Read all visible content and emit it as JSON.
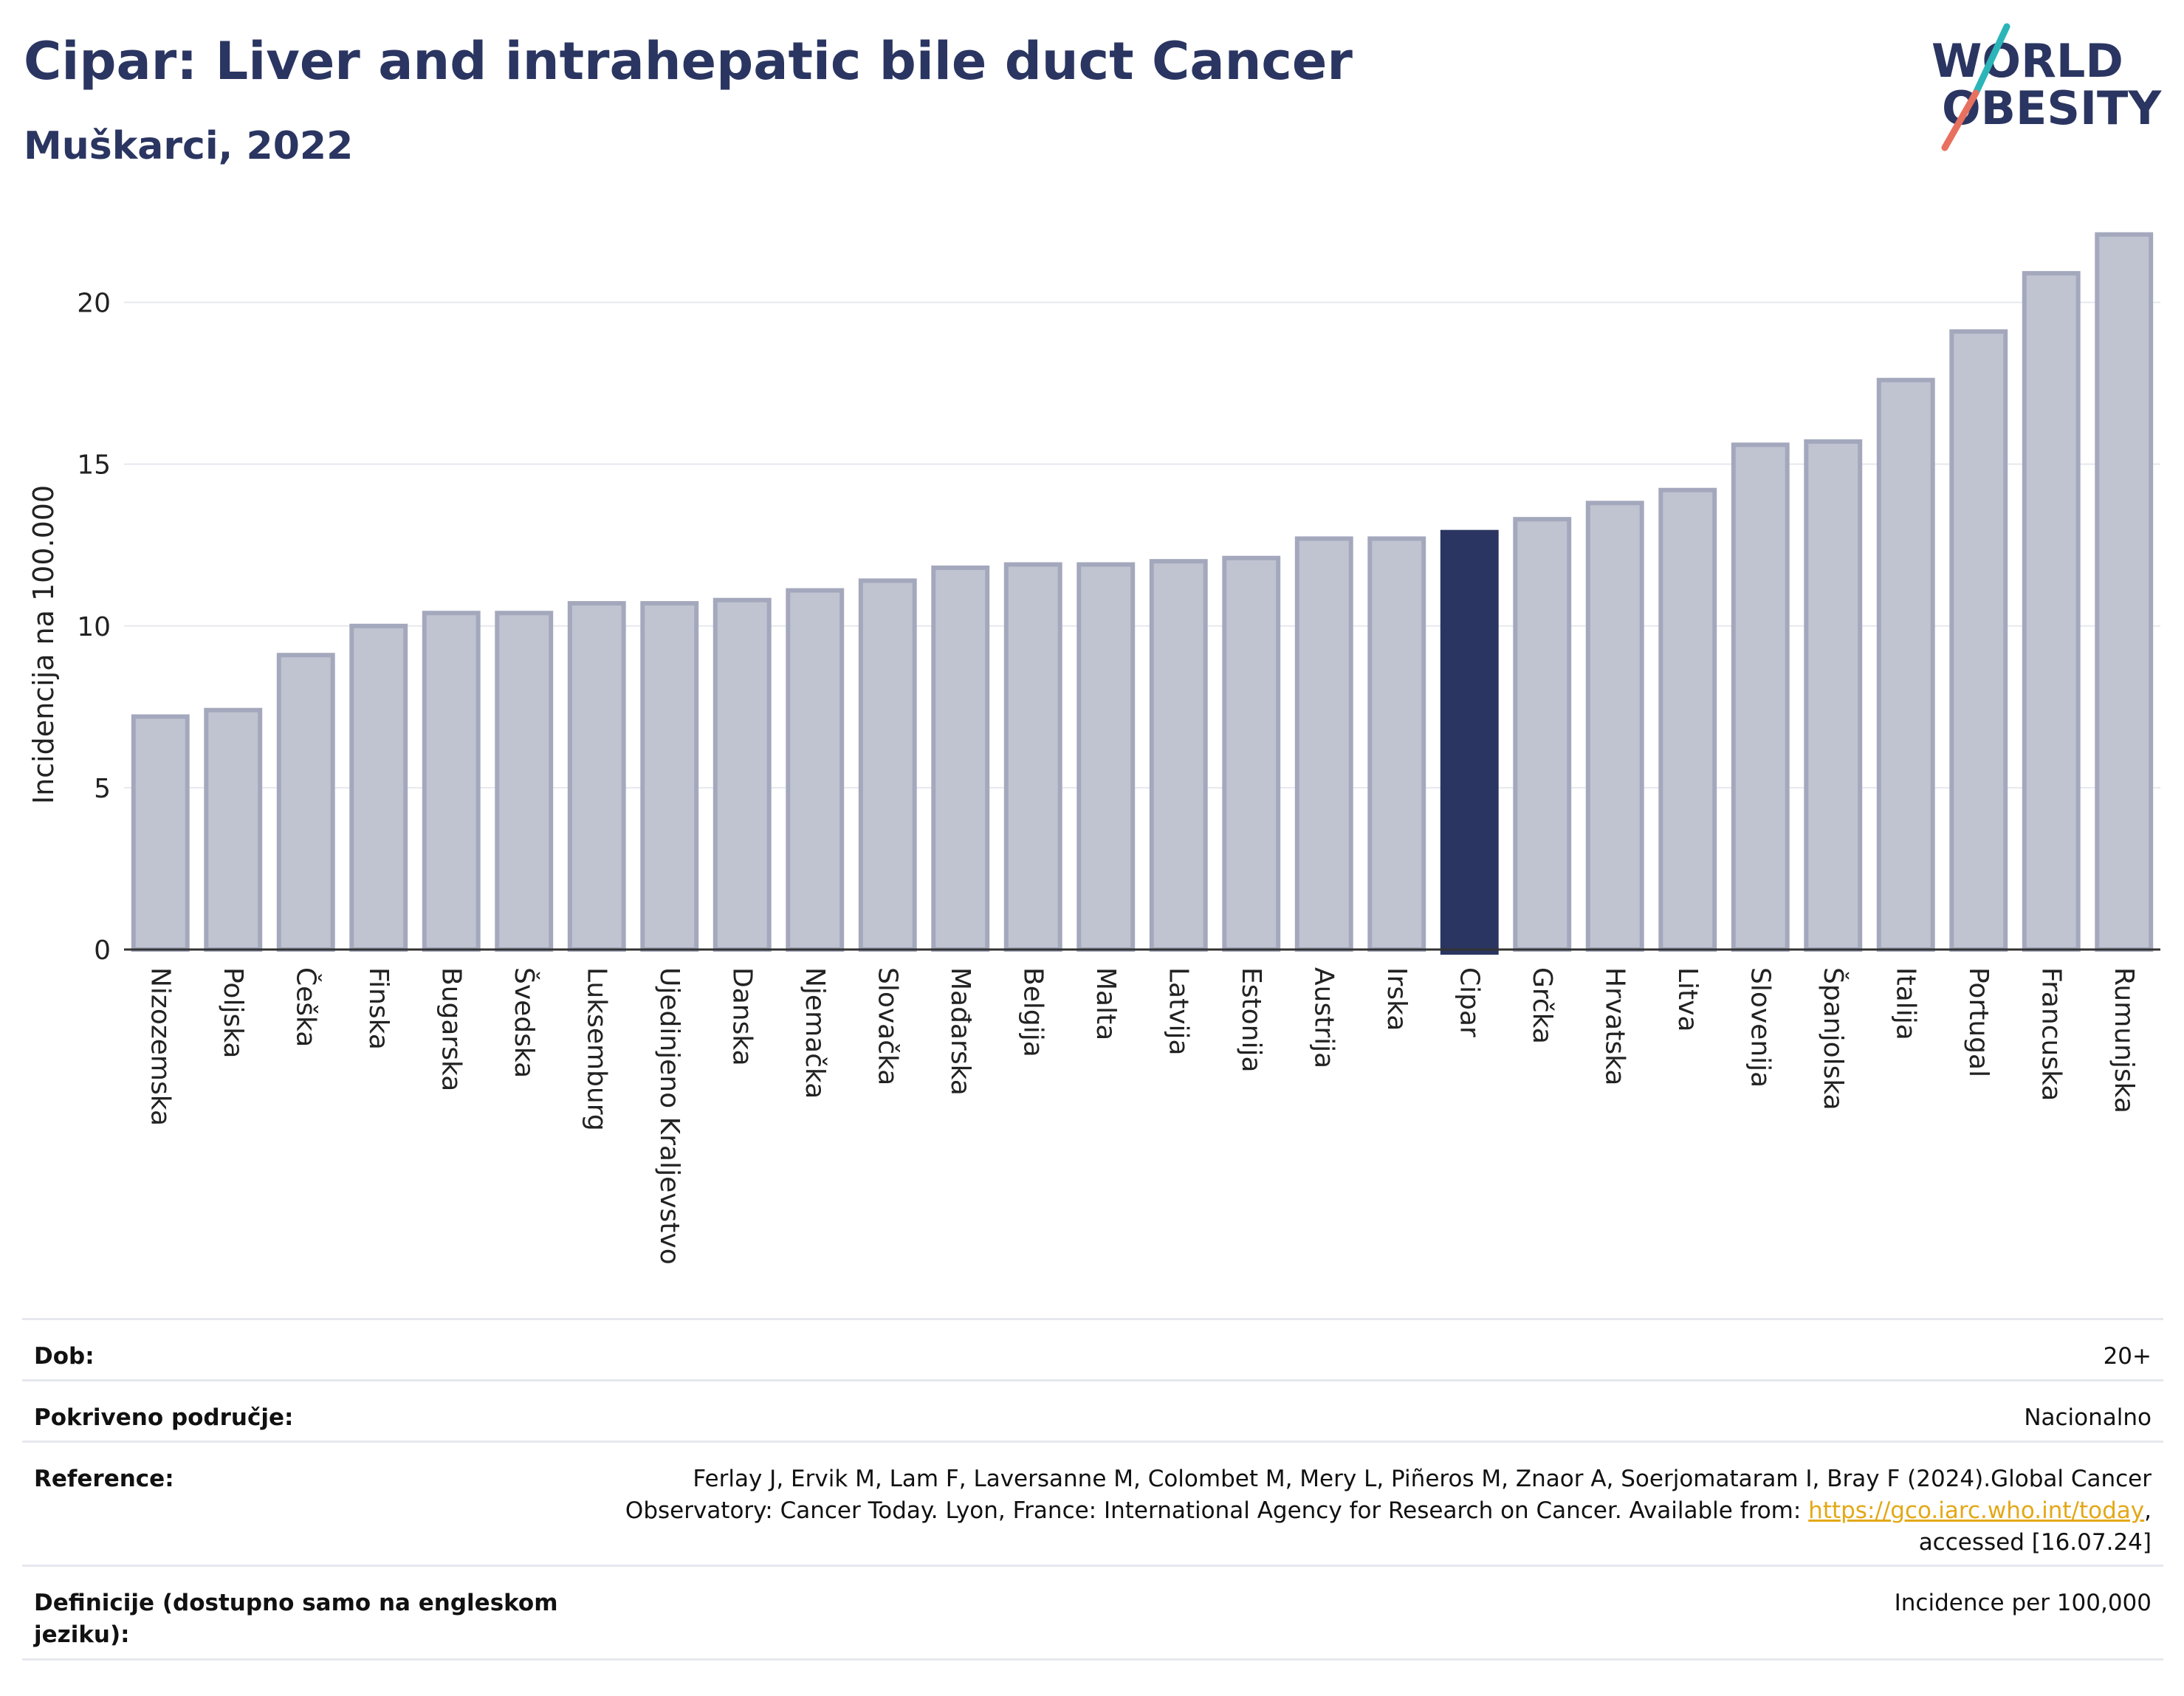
{
  "header": {
    "title": "Cipar: Liver and intrahepatic bile duct Cancer",
    "subtitle": "Muškarci, 2022"
  },
  "logo": {
    "line1": "WORLD",
    "line2": "OBESITY",
    "colors": {
      "text": "#2a3561",
      "slash_top": "#2bb5b8",
      "slash_bottom": "#e8705e"
    }
  },
  "colors": {
    "bar_default": "#c0c3d0",
    "bar_stroke": "#a4a8bd",
    "bar_highlight": "#2a3561",
    "grid": "#e6e8ee",
    "axis": "#333333"
  },
  "chart_data": {
    "type": "bar",
    "ylabel": "Incidencija na 100.000",
    "xlabel": "",
    "ylim": [
      0,
      22.5
    ],
    "yticks": [
      0,
      5,
      10,
      15,
      20
    ],
    "grid": true,
    "highlight": "Cipar",
    "categories": [
      "Nizozemska",
      "Poljska",
      "Češka",
      "Finska",
      "Bugarska",
      "Švedska",
      "Luksemburg",
      "Ujedinjeno Kraljevstvo",
      "Danska",
      "Njemačka",
      "Slovačka",
      "Mađarska",
      "Belgija",
      "Malta",
      "Latvija",
      "Estonija",
      "Austrija",
      "Irska",
      "Cipar",
      "Grčka",
      "Hrvatska",
      "Litva",
      "Slovenija",
      "Španjolska",
      "Italija",
      "Portugal",
      "Francuska",
      "Rumunjska"
    ],
    "values": [
      7.2,
      7.4,
      9.1,
      10.0,
      10.4,
      10.4,
      10.7,
      10.7,
      10.8,
      11.1,
      11.4,
      11.8,
      11.9,
      11.9,
      12.0,
      12.1,
      12.7,
      12.7,
      12.9,
      13.3,
      13.8,
      14.2,
      15.6,
      15.7,
      17.6,
      19.1,
      20.9,
      22.1
    ]
  },
  "meta": {
    "age_label": "Dob:",
    "age_value": "20+",
    "coverage_label": "Pokriveno područje:",
    "coverage_value": "Nacionalno",
    "reference_label": "Reference:",
    "reference_text": "Ferlay J, Ervik M, Lam F, Laversanne M, Colombet M, Mery L, Piñeros M, Znaor A, Soerjomataram I, Bray F (2024).Global Cancer Observatory: Cancer Today. Lyon, France: International Agency for Research on Cancer. Available from:",
    "reference_link": "https://gco.iarc.who.int/today",
    "reference_suffix": ", accessed [16.07.24]",
    "definitions_label": "Definicije (dostupno samo na engleskom jeziku):",
    "definitions_value": "Incidence per 100,000"
  }
}
